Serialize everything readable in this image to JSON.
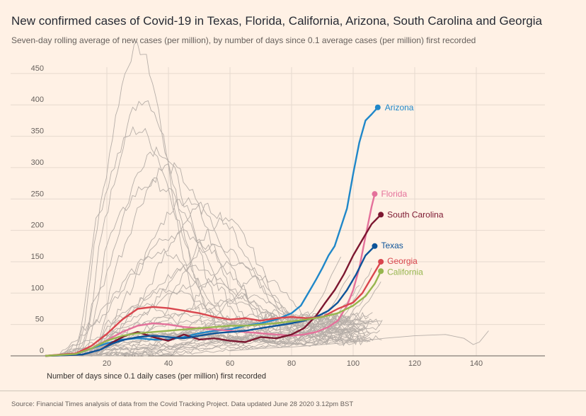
{
  "header": {
    "title": "New confirmed cases of Covid-19 in Texas, Florida, California, Arizona, South Carolina and Georgia",
    "subtitle": "Seven-day rolling average of new cases (per million), by number of days since 0.1 average cases (per million) first recorded"
  },
  "footer": {
    "source": "Source: Financial Times analysis of data from the Covid Tracking Project. Data updated June 28 2020 3.12pm BST"
  },
  "chart_data": {
    "type": "line",
    "title": "New confirmed cases of Covid-19 in Texas, Florida, California, Arizona, South Carolina and Georgia",
    "xlabel": "Number of days since 0.1 daily cases (per million) first recorded",
    "ylabel": "",
    "xlim": [
      0,
      160
    ],
    "ylim": [
      0,
      460
    ],
    "xticks": [
      20,
      40,
      60,
      80,
      100,
      120,
      140
    ],
    "yticks": [
      0,
      50,
      100,
      150,
      200,
      250,
      300,
      350,
      400,
      450
    ],
    "grid": true,
    "colors": {
      "background": "#FFF1E5",
      "grid": "#E6D9CE",
      "other_states": "#B6AEA8",
      "Arizona": "#1F87C9",
      "Florida": "#E4719B",
      "South Carolina": "#7C1730",
      "Texas": "#0D5499",
      "Georgia": "#D9464E",
      "California": "#96B64E"
    },
    "series": [
      {
        "name": "Arizona",
        "x": [
          0,
          10,
          15,
          20,
          25,
          30,
          35,
          40,
          45,
          50,
          55,
          60,
          65,
          70,
          75,
          80,
          83,
          86,
          88,
          90,
          92,
          94,
          96,
          98,
          100,
          102,
          104,
          106,
          108
        ],
        "values": [
          0,
          3,
          12,
          20,
          26,
          28,
          26,
          26,
          30,
          36,
          40,
          42,
          48,
          52,
          58,
          68,
          80,
          105,
          122,
          140,
          160,
          175,
          205,
          235,
          290,
          340,
          375,
          385,
          396
        ]
      },
      {
        "name": "Florida",
        "x": [
          0,
          10,
          15,
          20,
          25,
          30,
          35,
          40,
          45,
          50,
          55,
          60,
          65,
          70,
          75,
          80,
          84,
          88,
          92,
          95,
          98,
          100,
          102,
          104,
          106,
          107
        ],
        "values": [
          0,
          4,
          12,
          25,
          38,
          48,
          52,
          50,
          46,
          44,
          42,
          40,
          38,
          36,
          34,
          32,
          34,
          38,
          46,
          56,
          80,
          105,
          140,
          190,
          238,
          258
        ]
      },
      {
        "name": "South Carolina",
        "x": [
          0,
          12,
          18,
          22,
          26,
          30,
          35,
          40,
          45,
          50,
          55,
          60,
          65,
          70,
          75,
          80,
          84,
          88,
          91,
          94,
          97,
          100,
          103,
          106,
          109
        ],
        "values": [
          0,
          2,
          10,
          22,
          32,
          38,
          30,
          24,
          34,
          26,
          28,
          24,
          22,
          30,
          28,
          34,
          44,
          64,
          85,
          105,
          130,
          160,
          185,
          210,
          225
        ]
      },
      {
        "name": "Texas",
        "x": [
          0,
          12,
          18,
          22,
          26,
          30,
          35,
          40,
          45,
          50,
          55,
          60,
          65,
          70,
          75,
          80,
          84,
          88,
          92,
          95,
          98,
          101,
          104,
          107
        ],
        "values": [
          0,
          2,
          10,
          20,
          26,
          30,
          32,
          30,
          28,
          32,
          36,
          38,
          40,
          44,
          48,
          52,
          56,
          62,
          72,
          85,
          105,
          130,
          160,
          175
        ]
      },
      {
        "name": "Georgia",
        "x": [
          0,
          10,
          15,
          20,
          25,
          30,
          35,
          40,
          45,
          50,
          55,
          60,
          65,
          70,
          75,
          80,
          85,
          90,
          95,
          100,
          103,
          106,
          109
        ],
        "values": [
          0,
          4,
          16,
          35,
          58,
          75,
          78,
          76,
          72,
          68,
          62,
          58,
          60,
          56,
          60,
          62,
          60,
          62,
          75,
          85,
          100,
          125,
          150
        ]
      },
      {
        "name": "California",
        "x": [
          0,
          10,
          15,
          20,
          25,
          30,
          35,
          40,
          45,
          50,
          55,
          60,
          65,
          70,
          75,
          80,
          85,
          90,
          95,
          100,
          104,
          107,
          109
        ],
        "values": [
          0,
          3,
          12,
          24,
          32,
          36,
          38,
          40,
          42,
          44,
          46,
          48,
          48,
          50,
          52,
          55,
          58,
          62,
          68,
          80,
          95,
          115,
          135
        ]
      }
    ]
  }
}
